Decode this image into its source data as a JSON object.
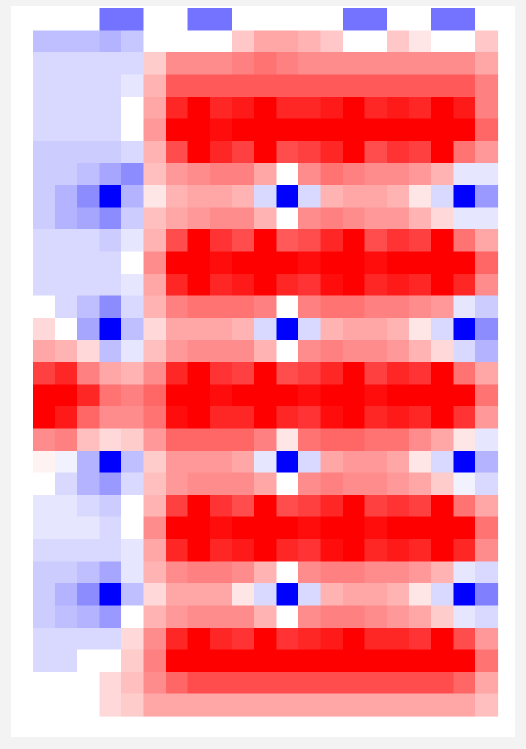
{
  "chart_data": {
    "type": "heatmap",
    "colormap": {
      "negative": "#0000ff",
      "zero": "#ffffff",
      "positive": "#ff0000",
      "vmin": -1,
      "vmax": 1
    },
    "n_rows": 32,
    "n_cols": 21,
    "values": [
      [
        0,
        0,
        0,
        -0.55,
        -0.55,
        0,
        0,
        -0.55,
        -0.55,
        0,
        0,
        0,
        0,
        0,
        -0.55,
        -0.55,
        0,
        0,
        -0.55,
        -0.55,
        0
      ],
      [
        -0.25,
        -0.25,
        -0.25,
        -0.3,
        -0.22,
        0,
        0,
        0,
        0,
        0.22,
        0.35,
        0.35,
        0.3,
        0.22,
        0,
        0,
        0.22,
        0.1,
        0,
        0,
        0.22
      ],
      [
        -0.15,
        -0.15,
        -0.15,
        -0.15,
        -0.15,
        0.2,
        0.45,
        0.45,
        0.45,
        0.5,
        0.55,
        0.5,
        0.45,
        0.45,
        0.45,
        0.45,
        0.45,
        0.45,
        0.45,
        0.45,
        0.35
      ],
      [
        -0.15,
        -0.15,
        -0.15,
        -0.15,
        -0.1,
        0.3,
        0.65,
        0.65,
        0.65,
        0.65,
        0.65,
        0.65,
        0.65,
        0.65,
        0.65,
        0.65,
        0.65,
        0.65,
        0.65,
        0.65,
        0.5
      ],
      [
        -0.15,
        -0.15,
        -0.15,
        -0.15,
        0,
        0.35,
        0.85,
        1,
        0.85,
        0.9,
        1,
        0.85,
        0.85,
        0.9,
        1,
        0.85,
        0.9,
        0.85,
        1,
        0.9,
        0.5
      ],
      [
        -0.15,
        -0.15,
        -0.15,
        -0.15,
        0,
        0.4,
        1,
        1,
        0.95,
        1,
        1,
        1,
        1,
        1,
        1,
        1,
        1,
        1,
        1,
        1,
        0.6
      ],
      [
        -0.2,
        -0.2,
        -0.2,
        -0.2,
        -0.15,
        0.3,
        0.7,
        1,
        0.85,
        0.75,
        1,
        0.7,
        0.75,
        0.85,
        1,
        0.7,
        0.8,
        0.75,
        1,
        0.55,
        0.4
      ],
      [
        -0.2,
        -0.2,
        -0.25,
        -0.35,
        -0.45,
        0.25,
        0.4,
        0.45,
        0.5,
        0.5,
        0.35,
        0,
        0.45,
        0.55,
        0.5,
        0.45,
        0.45,
        0.4,
        0.3,
        -0.1,
        -0.1
      ],
      [
        -0.2,
        -0.3,
        -0.45,
        -1,
        -0.3,
        0.1,
        0.3,
        0.35,
        0.35,
        0.3,
        -0.15,
        -1,
        -0.15,
        0.3,
        0.35,
        0.35,
        0.3,
        0.1,
        -0.15,
        -1,
        -0.4
      ],
      [
        -0.2,
        -0.3,
        -0.35,
        -0.45,
        -0.2,
        0.25,
        0.35,
        0.4,
        0.45,
        0.45,
        0.3,
        0,
        0.45,
        0.5,
        0.45,
        0.4,
        0.4,
        0.3,
        0.15,
        -0.1,
        -0.1
      ],
      [
        -0.15,
        -0.15,
        -0.15,
        -0.2,
        -0.1,
        0.3,
        0.7,
        1,
        0.8,
        0.7,
        1,
        0.65,
        0.7,
        0.85,
        1,
        0.7,
        0.8,
        0.75,
        1,
        0.55,
        0.35
      ],
      [
        -0.15,
        -0.15,
        -0.15,
        -0.15,
        0,
        0.45,
        1,
        1,
        0.95,
        1,
        1,
        1,
        0.95,
        1,
        1,
        0.95,
        1,
        1,
        1,
        1,
        0.6
      ],
      [
        -0.15,
        -0.15,
        -0.15,
        -0.15,
        -0.1,
        0.35,
        0.85,
        1,
        0.85,
        0.9,
        1,
        0.85,
        0.8,
        0.95,
        1,
        0.85,
        0.9,
        0.85,
        1,
        0.85,
        0.45
      ],
      [
        0,
        -0.15,
        -0.25,
        -0.45,
        -0.15,
        0.3,
        0.5,
        0.55,
        0.55,
        0.55,
        0.5,
        0,
        0.5,
        0.55,
        0.55,
        0.5,
        0.5,
        0.45,
        0.4,
        -0.1,
        -0.2
      ],
      [
        0.15,
        0,
        -0.35,
        -1,
        -0.25,
        0.15,
        0.35,
        0.35,
        0.35,
        0.3,
        -0.15,
        -1,
        -0.15,
        0.3,
        0.35,
        0.35,
        0.3,
        0.1,
        -0.15,
        -1,
        -0.45
      ],
      [
        0.35,
        0.3,
        0.15,
        -0.25,
        -0.1,
        0.25,
        0.4,
        0.45,
        0.45,
        0.45,
        0.3,
        0,
        0.45,
        0.5,
        0.45,
        0.45,
        0.4,
        0.3,
        0.15,
        -0.15,
        -0.3
      ],
      [
        0.75,
        0.85,
        0.5,
        0.35,
        0.3,
        0.45,
        0.85,
        1,
        0.8,
        0.75,
        1,
        0.7,
        0.75,
        0.85,
        1,
        0.75,
        0.85,
        0.8,
        1,
        0.55,
        0.35
      ],
      [
        1,
        1,
        0.85,
        0.55,
        0.5,
        0.6,
        1,
        1,
        0.95,
        1,
        1,
        1,
        0.95,
        1,
        1,
        0.95,
        1,
        1,
        1,
        1,
        0.55
      ],
      [
        1,
        0.9,
        0.6,
        0.45,
        0.45,
        0.55,
        0.95,
        1,
        0.85,
        0.85,
        1,
        0.85,
        0.8,
        0.95,
        1,
        0.85,
        0.9,
        0.85,
        1,
        0.8,
        0.4
      ],
      [
        0.45,
        0.5,
        0.25,
        0.15,
        0.2,
        0.4,
        0.6,
        0.6,
        0.6,
        0.6,
        0.5,
        0.1,
        0.55,
        0.6,
        0.6,
        0.55,
        0.55,
        0.45,
        0.35,
        0.1,
        -0.1
      ],
      [
        0.05,
        -0.05,
        -0.3,
        -1,
        -0.25,
        0.2,
        0.4,
        0.4,
        0.4,
        0.35,
        -0.1,
        -1,
        -0.15,
        0.35,
        0.4,
        0.4,
        0.35,
        0.1,
        -0.15,
        -1,
        -0.3
      ],
      [
        0,
        -0.15,
        -0.3,
        -0.4,
        -0.15,
        0.25,
        0.4,
        0.45,
        0.45,
        0.45,
        0.35,
        0,
        0.45,
        0.5,
        0.45,
        0.45,
        0.4,
        0.35,
        0.2,
        -0.05,
        -0.15
      ],
      [
        -0.1,
        -0.1,
        -0.15,
        -0.2,
        0,
        0.3,
        0.75,
        1,
        0.8,
        0.7,
        1,
        0.7,
        0.75,
        0.85,
        1,
        0.75,
        0.8,
        0.75,
        1,
        0.55,
        0.35
      ],
      [
        -0.1,
        -0.1,
        -0.1,
        -0.15,
        0,
        0.45,
        1,
        1,
        0.95,
        1,
        1,
        1,
        0.95,
        1,
        1,
        0.95,
        1,
        1,
        1,
        1,
        0.55
      ],
      [
        -0.15,
        -0.15,
        -0.15,
        -0.15,
        -0.1,
        0.35,
        0.85,
        1,
        0.85,
        0.9,
        1,
        0.85,
        0.8,
        0.95,
        1,
        0.85,
        0.9,
        0.85,
        1,
        0.85,
        0.45
      ],
      [
        -0.2,
        -0.2,
        -0.25,
        -0.35,
        -0.1,
        0.3,
        0.45,
        0.5,
        0.5,
        0.45,
        0.3,
        0,
        0.45,
        0.5,
        0.5,
        0.45,
        0.45,
        0.4,
        0.3,
        -0.1,
        -0.15
      ],
      [
        -0.2,
        -0.3,
        -0.45,
        -1,
        -0.25,
        0.15,
        0.35,
        0.35,
        0.35,
        0.1,
        -0.15,
        -1,
        -0.15,
        0.3,
        0.35,
        0.35,
        0.3,
        0.1,
        -0.15,
        -1,
        -0.5
      ],
      [
        -0.2,
        -0.25,
        -0.3,
        -0.4,
        0,
        0.3,
        0.4,
        0.45,
        0.45,
        0.45,
        0.3,
        0,
        0.45,
        0.5,
        0.5,
        0.45,
        0.4,
        0.35,
        0.2,
        -0.1,
        -0.15
      ],
      [
        -0.15,
        -0.15,
        -0.15,
        -0.15,
        0.15,
        0.45,
        0.85,
        1,
        0.85,
        0.8,
        1,
        0.8,
        0.85,
        0.9,
        1,
        0.85,
        0.85,
        0.8,
        1,
        0.7,
        0.4
      ],
      [
        -0.15,
        -0.15,
        0,
        0,
        0.2,
        0.5,
        1,
        1,
        1,
        1,
        1,
        1,
        1,
        1,
        1,
        1,
        1,
        1,
        1,
        1,
        0.55
      ],
      [
        0,
        0,
        0,
        0.15,
        0.25,
        0.45,
        0.6,
        0.7,
        0.7,
        0.7,
        0.7,
        0.7,
        0.7,
        0.7,
        0.7,
        0.7,
        0.7,
        0.7,
        0.7,
        0.6,
        0.35
      ],
      [
        0,
        0,
        0,
        0.15,
        0.2,
        0.35,
        0.35,
        0.35,
        0.35,
        0.35,
        0.35,
        0.35,
        0.35,
        0.35,
        0.35,
        0.35,
        0.35,
        0.35,
        0.35,
        0.35,
        0.25
      ]
    ]
  }
}
